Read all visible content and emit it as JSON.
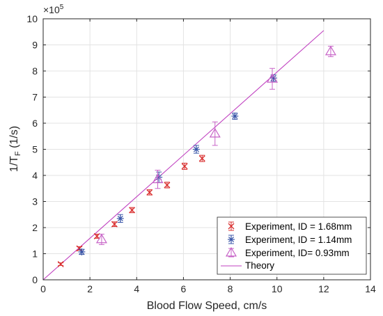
{
  "chart_data": {
    "type": "scatter",
    "title": "",
    "xlabel": "Blood Flow Speed, cm/s",
    "ylabel_main": "1/T",
    "ylabel_sub": "F",
    "ylabel_unit": " (1/s)",
    "y_exponent_base": "×10",
    "y_exponent_power": "5",
    "xlim": [
      0,
      14
    ],
    "ylim": [
      0,
      10
    ],
    "y_multiplier": 100000,
    "xticks": [
      "0",
      "2",
      "4",
      "6",
      "8",
      "10",
      "12",
      "14"
    ],
    "yticks": [
      "0",
      "1",
      "2",
      "3",
      "4",
      "5",
      "6",
      "7",
      "8",
      "9",
      "10"
    ],
    "grid": true,
    "legend_position": "bottom-right",
    "series": [
      {
        "name": "Experiment, ID = 1.68mm",
        "marker": "x",
        "color": "#d93030",
        "points": [
          {
            "x": 0.75,
            "y": 0.6,
            "err": 0.05
          },
          {
            "x": 1.55,
            "y": 1.2,
            "err": 0.07
          },
          {
            "x": 2.3,
            "y": 1.67,
            "err": 0.08
          },
          {
            "x": 3.05,
            "y": 2.13,
            "err": 0.09
          },
          {
            "x": 3.8,
            "y": 2.67,
            "err": 0.1
          },
          {
            "x": 4.55,
            "y": 3.35,
            "err": 0.1
          },
          {
            "x": 5.3,
            "y": 3.63,
            "err": 0.11
          },
          {
            "x": 6.05,
            "y": 4.35,
            "err": 0.12
          },
          {
            "x": 6.8,
            "y": 4.65,
            "err": 0.12
          }
        ]
      },
      {
        "name": "Experiment, ID = 1.14mm",
        "marker": "asterisk",
        "color": "#3a56a8",
        "points": [
          {
            "x": 1.65,
            "y": 1.07,
            "err": 0.1
          },
          {
            "x": 3.3,
            "y": 2.35,
            "err": 0.15
          },
          {
            "x": 4.95,
            "y": 3.93,
            "err": 0.2
          },
          {
            "x": 6.55,
            "y": 5.0,
            "err": 0.15
          },
          {
            "x": 8.2,
            "y": 6.27,
            "err": 0.12
          },
          {
            "x": 9.85,
            "y": 7.73,
            "err": 0.12
          }
        ]
      },
      {
        "name": "Experiment, ID= 0.93mm",
        "marker": "triangle",
        "color": "#c763c7",
        "points": [
          {
            "x": 2.5,
            "y": 1.55,
            "err": 0.2
          },
          {
            "x": 4.9,
            "y": 3.85,
            "err": 0.35
          },
          {
            "x": 7.35,
            "y": 5.6,
            "err": 0.45
          },
          {
            "x": 9.8,
            "y": 7.7,
            "err": 0.4
          },
          {
            "x": 12.3,
            "y": 8.75,
            "err": 0.2
          }
        ]
      },
      {
        "name": "Theory",
        "marker": "line",
        "color": "#c040c0",
        "line": [
          [
            0,
            0
          ],
          [
            12.0,
            9.55
          ]
        ]
      }
    ]
  }
}
